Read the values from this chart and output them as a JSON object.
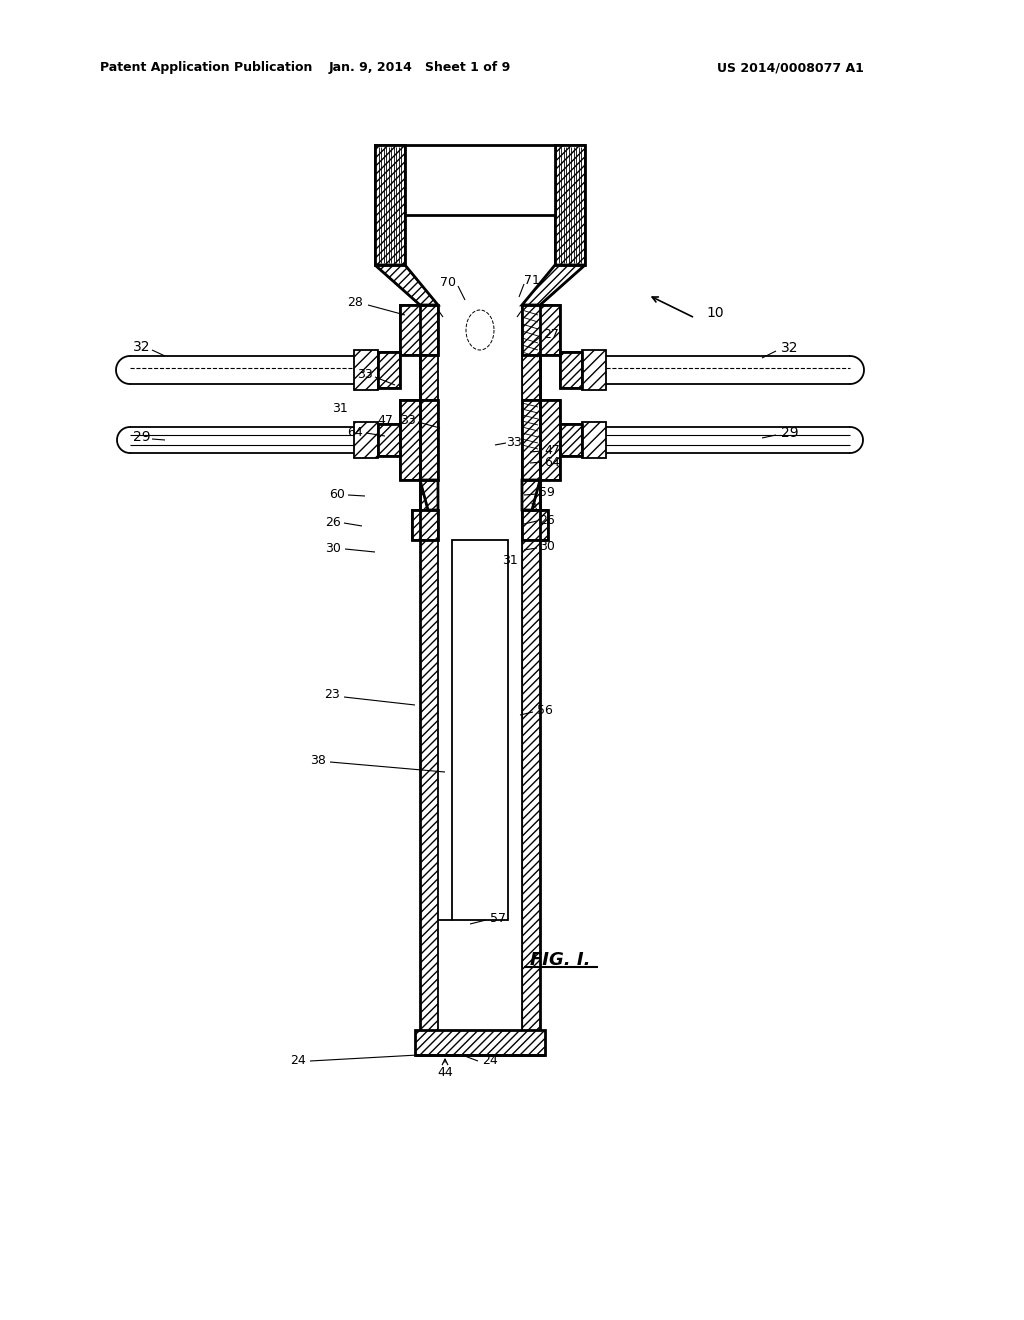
{
  "bg_color": "#ffffff",
  "header_left": "Patent Application Publication",
  "header_mid": "Jan. 9, 2014   Sheet 1 of 9",
  "header_right": "US 2014/0008077 A1",
  "fig_label": "FIG. I."
}
